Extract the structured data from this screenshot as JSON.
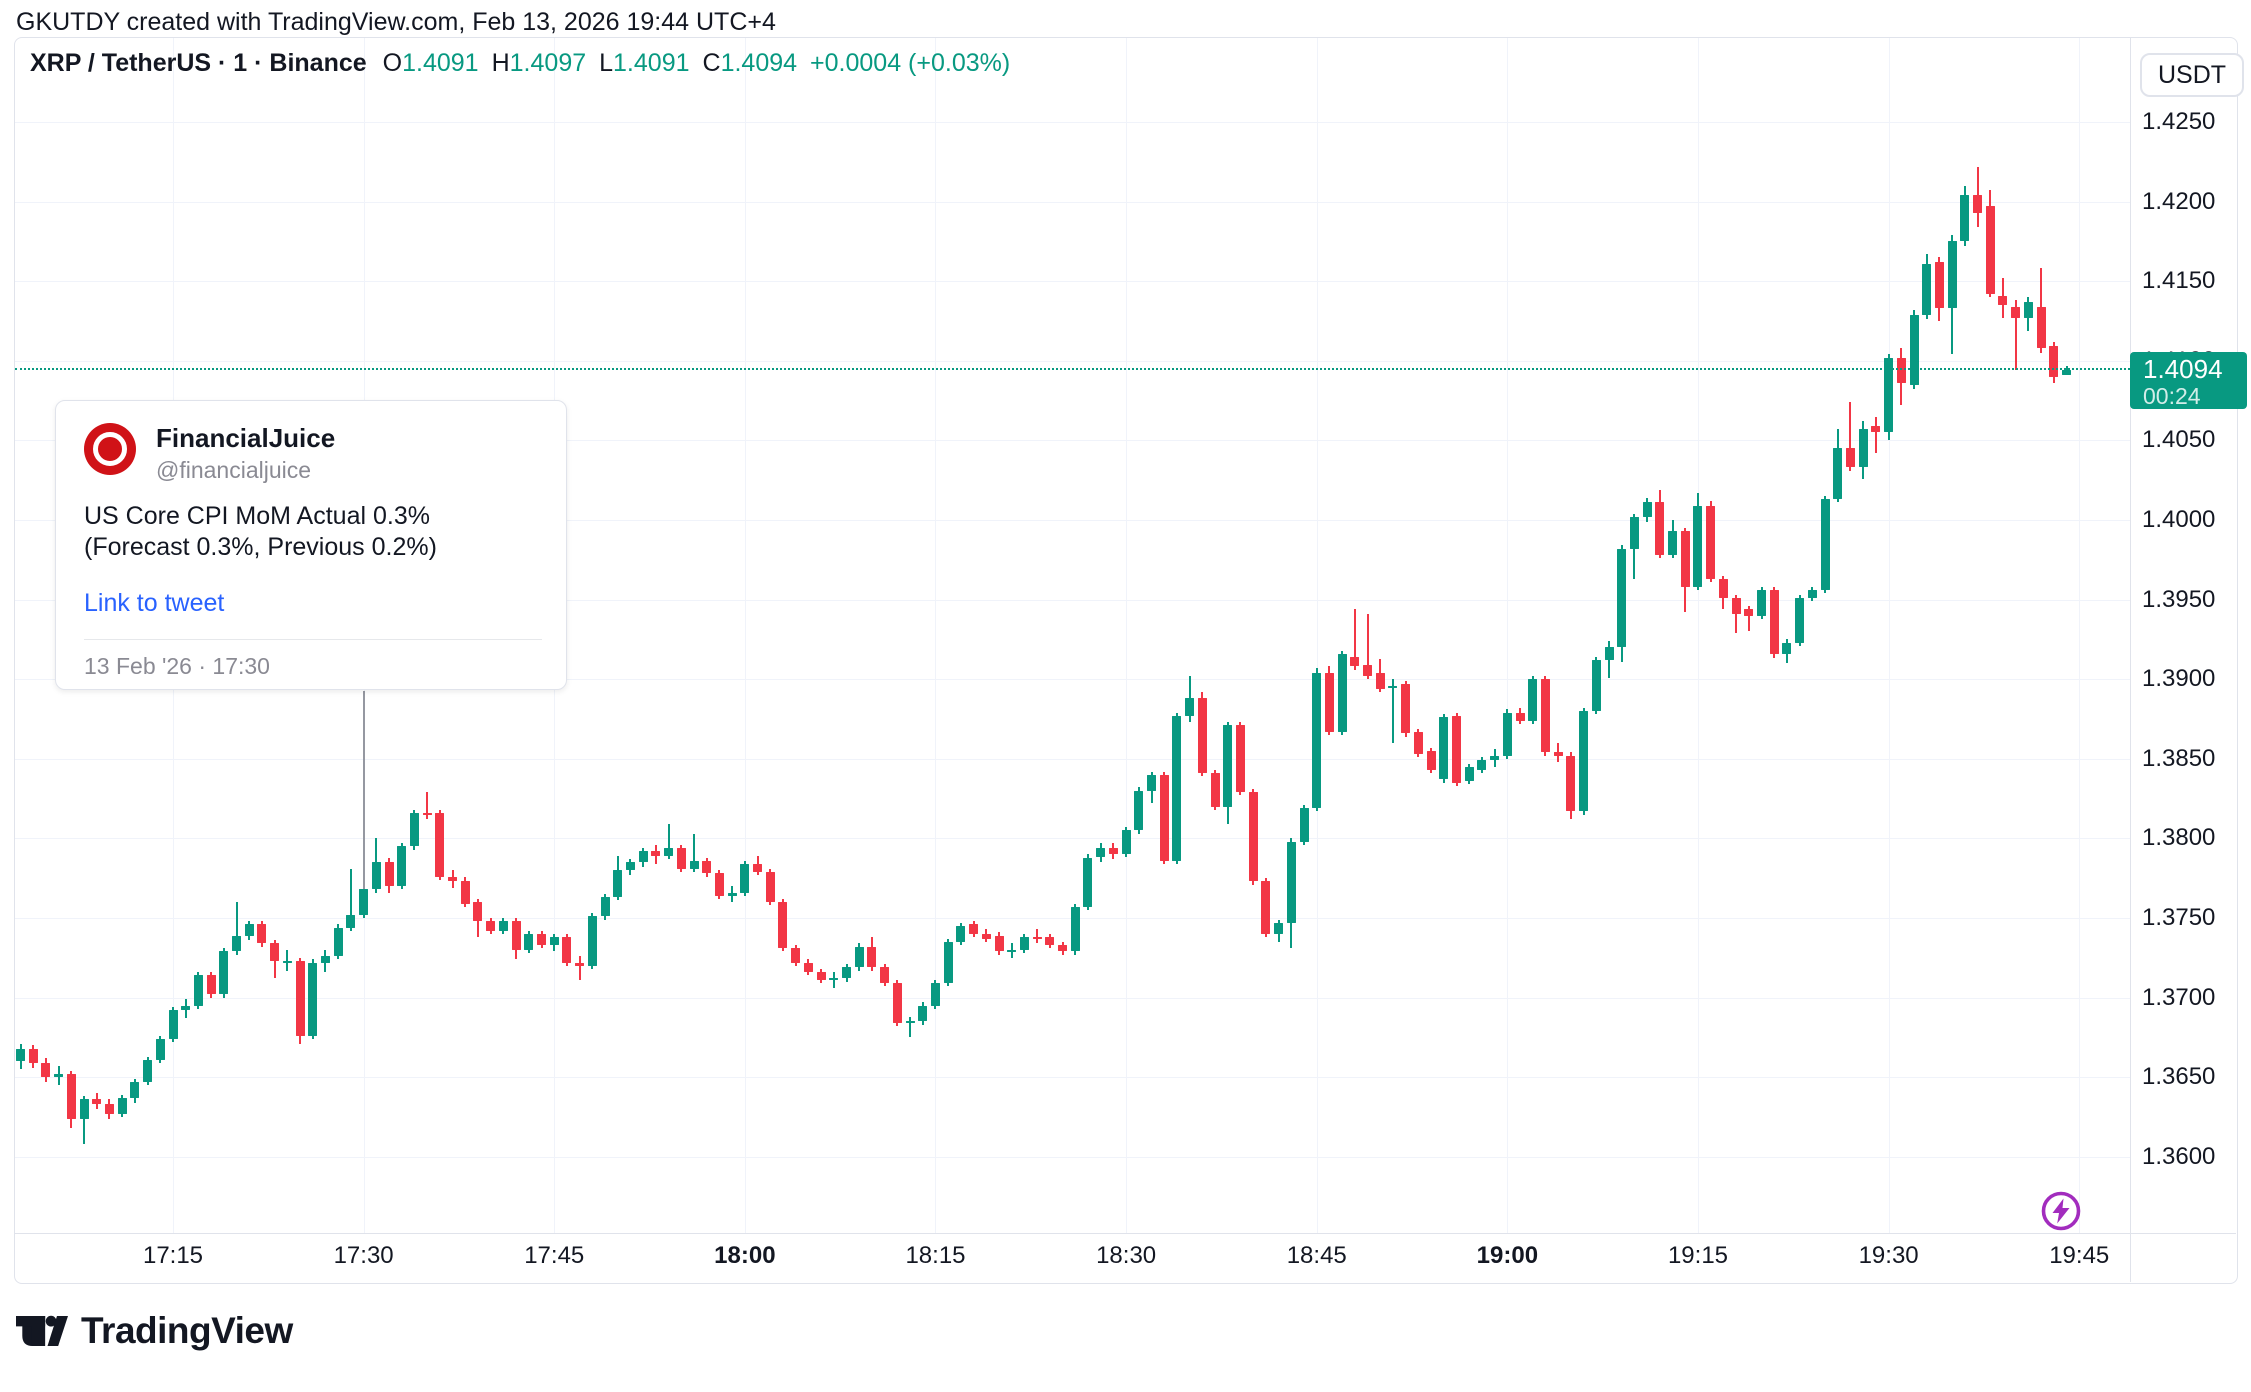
{
  "header": {
    "attribution": "GKUTDY created with TradingView.com, Feb 13, 2026 19:44 UTC+4"
  },
  "legend": {
    "symbol": "XRP / TetherUS · 1 · Binance",
    "items": [
      {
        "k": "O",
        "v": "1.4091"
      },
      {
        "k": "H",
        "v": "1.4097"
      },
      {
        "k": "L",
        "v": "1.4091"
      },
      {
        "k": "C",
        "v": "1.4094"
      }
    ],
    "change": "+0.0004 (+0.03%)"
  },
  "currency_button": "USDT",
  "price_scale": {
    "current_price": "1.4094",
    "countdown": "00:24"
  },
  "news_card": {
    "title": "FinancialJuice",
    "handle": "@financialjuice",
    "body": "US Core CPI MoM Actual 0.3% (Forecast 0.3%, Previous 0.2%)",
    "link": "Link to tweet",
    "date": "13 Feb '26 · 17:30"
  },
  "footer": {
    "brand": "TradingView"
  },
  "colors": {
    "up": "#089981",
    "down": "#F23645",
    "grid": "#F0F3FA",
    "border": "#E0E3EB",
    "text": "#131722",
    "muted": "#8A8A93",
    "link_blue": "#2962FF",
    "logo_red": "#D01217",
    "marker_purple": "#A22CBE"
  },
  "chart_data": {
    "type": "candlestick",
    "title": "XRP / TetherUS · 1 · Binance",
    "interval": "1 minute",
    "ylabel": "price (USDT)",
    "ylim": [
      1.3555,
      1.4303
    ],
    "grid": true,
    "price_ticks": [
      "1.4250",
      "1.4200",
      "1.4150",
      "1.4100",
      "1.4050",
      "1.4000",
      "1.3950",
      "1.3900",
      "1.3850",
      "1.3800",
      "1.3750",
      "1.3700",
      "1.3650",
      "1.3600"
    ],
    "time_ticks": [
      {
        "label": "17:15",
        "bold": false
      },
      {
        "label": "17:30",
        "bold": false
      },
      {
        "label": "17:45",
        "bold": false
      },
      {
        "label": "18:00",
        "bold": true
      },
      {
        "label": "18:15",
        "bold": false
      },
      {
        "label": "18:30",
        "bold": false
      },
      {
        "label": "18:45",
        "bold": false
      },
      {
        "label": "19:00",
        "bold": true
      },
      {
        "label": "19:15",
        "bold": false
      },
      {
        "label": "19:30",
        "bold": false
      },
      {
        "label": "19:45",
        "bold": false
      }
    ],
    "current_price": 1.4094,
    "news_event_time": "17:30",
    "alert_marker_time": "19:44",
    "candles": [
      [
        "17:03",
        1.366,
        1.3671,
        1.3655,
        1.3668
      ],
      [
        "17:04",
        1.3668,
        1.367,
        1.3656,
        1.3659
      ],
      [
        "17:05",
        1.3659,
        1.3662,
        1.3647,
        1.365
      ],
      [
        "17:06",
        1.365,
        1.3657,
        1.3645,
        1.3652
      ],
      [
        "17:07",
        1.3652,
        1.3654,
        1.3618,
        1.3624
      ],
      [
        "17:08",
        1.3624,
        1.3638,
        1.3608,
        1.3636
      ],
      [
        "17:09",
        1.3636,
        1.364,
        1.363,
        1.3633
      ],
      [
        "17:10",
        1.3633,
        1.3636,
        1.3624,
        1.3627
      ],
      [
        "17:11",
        1.3627,
        1.3639,
        1.3625,
        1.3637
      ],
      [
        "17:12",
        1.3637,
        1.3649,
        1.3634,
        1.3647
      ],
      [
        "17:13",
        1.3647,
        1.3663,
        1.3645,
        1.3661
      ],
      [
        "17:14",
        1.3661,
        1.3676,
        1.3659,
        1.3674
      ],
      [
        "17:15",
        1.3674,
        1.3694,
        1.3672,
        1.3692
      ],
      [
        "17:16",
        1.3692,
        1.3699,
        1.3687,
        1.3695
      ],
      [
        "17:17",
        1.3695,
        1.3716,
        1.3693,
        1.3714
      ],
      [
        "17:18",
        1.3714,
        1.3716,
        1.37,
        1.3702
      ],
      [
        "17:19",
        1.3702,
        1.3731,
        1.37,
        1.3729
      ],
      [
        "17:20",
        1.3729,
        1.376,
        1.3727,
        1.3739
      ],
      [
        "17:21",
        1.3739,
        1.3748,
        1.3736,
        1.3746
      ],
      [
        "17:22",
        1.3746,
        1.3748,
        1.3732,
        1.3734
      ],
      [
        "17:23",
        1.3734,
        1.3736,
        1.3712,
        1.3723
      ],
      [
        "17:24",
        1.3723,
        1.373,
        1.3717,
        1.3723
      ],
      [
        "17:25",
        1.3723,
        1.3725,
        1.3671,
        1.3676
      ],
      [
        "17:26",
        1.3676,
        1.3724,
        1.3674,
        1.3722
      ],
      [
        "17:27",
        1.3722,
        1.373,
        1.3716,
        1.3726
      ],
      [
        "17:28",
        1.3726,
        1.3746,
        1.3724,
        1.3744
      ],
      [
        "17:29",
        1.3744,
        1.3781,
        1.3742,
        1.3752
      ],
      [
        "17:30",
        1.3752,
        1.389,
        1.375,
        1.3768
      ],
      [
        "17:31",
        1.3768,
        1.38,
        1.3766,
        1.3785
      ],
      [
        "17:32",
        1.3785,
        1.3788,
        1.3766,
        1.377
      ],
      [
        "17:33",
        1.377,
        1.3797,
        1.3768,
        1.3795
      ],
      [
        "17:34",
        1.3795,
        1.3818,
        1.3793,
        1.3816
      ],
      [
        "17:35",
        1.3816,
        1.3829,
        1.3812,
        1.3815
      ],
      [
        "17:36",
        1.3816,
        1.3818,
        1.3774,
        1.3776
      ],
      [
        "17:37",
        1.3776,
        1.378,
        1.3769,
        1.3773
      ],
      [
        "17:38",
        1.3773,
        1.3776,
        1.3757,
        1.3759
      ],
      [
        "17:39",
        1.376,
        1.3762,
        1.3738,
        1.3748
      ],
      [
        "17:40",
        1.3748,
        1.375,
        1.374,
        1.3742
      ],
      [
        "17:41",
        1.3742,
        1.375,
        1.374,
        1.3748
      ],
      [
        "17:42",
        1.3748,
        1.375,
        1.3724,
        1.373
      ],
      [
        "17:43",
        1.373,
        1.3742,
        1.3728,
        1.374
      ],
      [
        "17:44",
        1.374,
        1.3742,
        1.3731,
        1.3733
      ],
      [
        "17:45",
        1.3733,
        1.374,
        1.3729,
        1.3738
      ],
      [
        "17:46",
        1.3738,
        1.374,
        1.372,
        1.3722
      ],
      [
        "17:47",
        1.3722,
        1.3726,
        1.3711,
        1.372
      ],
      [
        "17:48",
        1.372,
        1.3753,
        1.3718,
        1.3751
      ],
      [
        "17:49",
        1.3751,
        1.3765,
        1.3749,
        1.3763
      ],
      [
        "17:50",
        1.3763,
        1.3789,
        1.3761,
        1.378
      ],
      [
        "17:51",
        1.378,
        1.3787,
        1.3777,
        1.3785
      ],
      [
        "17:52",
        1.3785,
        1.3794,
        1.3782,
        1.3792
      ],
      [
        "17:53",
        1.3792,
        1.3796,
        1.3784,
        1.3789
      ],
      [
        "17:54",
        1.3789,
        1.3809,
        1.3787,
        1.3794
      ],
      [
        "17:55",
        1.3794,
        1.3796,
        1.3779,
        1.3781
      ],
      [
        "17:56",
        1.3781,
        1.3803,
        1.3779,
        1.3786
      ],
      [
        "17:57",
        1.3786,
        1.3788,
        1.3776,
        1.3778
      ],
      [
        "17:58",
        1.3778,
        1.378,
        1.3762,
        1.3764
      ],
      [
        "17:59",
        1.3764,
        1.377,
        1.376,
        1.3766
      ],
      [
        "18:00",
        1.3766,
        1.3786,
        1.3764,
        1.3784
      ],
      [
        "18:01",
        1.3784,
        1.3789,
        1.3777,
        1.3779
      ],
      [
        "18:02",
        1.3779,
        1.3781,
        1.3758,
        1.376
      ],
      [
        "18:03",
        1.376,
        1.3762,
        1.3729,
        1.3731
      ],
      [
        "18:04",
        1.3731,
        1.3733,
        1.372,
        1.3722
      ],
      [
        "18:05",
        1.3722,
        1.3724,
        1.3714,
        1.3716
      ],
      [
        "18:06",
        1.3716,
        1.3718,
        1.3709,
        1.3711
      ],
      [
        "18:07",
        1.3711,
        1.3716,
        1.3706,
        1.3712
      ],
      [
        "18:08",
        1.3712,
        1.3721,
        1.371,
        1.3719
      ],
      [
        "18:09",
        1.3719,
        1.3734,
        1.3717,
        1.3732
      ],
      [
        "18:10",
        1.3732,
        1.3738,
        1.3717,
        1.3719
      ],
      [
        "18:11",
        1.3719,
        1.3721,
        1.3707,
        1.3709
      ],
      [
        "18:12",
        1.3709,
        1.3711,
        1.3682,
        1.3684
      ],
      [
        "18:13",
        1.3684,
        1.3688,
        1.3675,
        1.3685
      ],
      [
        "18:14",
        1.3685,
        1.3697,
        1.3683,
        1.3695
      ],
      [
        "18:15",
        1.3695,
        1.3711,
        1.3693,
        1.3709
      ],
      [
        "18:16",
        1.3709,
        1.3737,
        1.3707,
        1.3735
      ],
      [
        "18:17",
        1.3735,
        1.3747,
        1.3733,
        1.3745
      ],
      [
        "18:18",
        1.3746,
        1.3748,
        1.3738,
        1.374
      ],
      [
        "18:19",
        1.374,
        1.3743,
        1.3735,
        1.3737
      ],
      [
        "18:20",
        1.3739,
        1.3741,
        1.3727,
        1.3729
      ],
      [
        "18:21",
        1.3729,
        1.3734,
        1.3725,
        1.373
      ],
      [
        "18:22",
        1.373,
        1.374,
        1.3728,
        1.3738
      ],
      [
        "18:23",
        1.3738,
        1.3743,
        1.3734,
        1.3737
      ],
      [
        "18:24",
        1.3738,
        1.374,
        1.3731,
        1.3733
      ],
      [
        "18:25",
        1.3733,
        1.3735,
        1.3727,
        1.3729
      ],
      [
        "18:26",
        1.3729,
        1.3759,
        1.3727,
        1.3757
      ],
      [
        "18:27",
        1.3757,
        1.379,
        1.3755,
        1.3788
      ],
      [
        "18:28",
        1.3788,
        1.3797,
        1.3785,
        1.3794
      ],
      [
        "18:29",
        1.3794,
        1.3797,
        1.3787,
        1.379
      ],
      [
        "18:30",
        1.379,
        1.3807,
        1.3788,
        1.3805
      ],
      [
        "18:31",
        1.3805,
        1.3832,
        1.3803,
        1.383
      ],
      [
        "18:32",
        1.383,
        1.3842,
        1.3822,
        1.384
      ],
      [
        "18:33",
        1.384,
        1.3842,
        1.3784,
        1.3786
      ],
      [
        "18:34",
        1.3786,
        1.3879,
        1.3784,
        1.3877
      ],
      [
        "18:35",
        1.3877,
        1.3902,
        1.3873,
        1.3888
      ],
      [
        "18:36",
        1.3888,
        1.3892,
        1.3839,
        1.3841
      ],
      [
        "18:37",
        1.3841,
        1.3843,
        1.3818,
        1.382
      ],
      [
        "18:38",
        1.382,
        1.3873,
        1.3809,
        1.3871
      ],
      [
        "18:39",
        1.3871,
        1.3873,
        1.3827,
        1.3829
      ],
      [
        "18:40",
        1.3829,
        1.3831,
        1.3771,
        1.3773
      ],
      [
        "18:41",
        1.3773,
        1.3775,
        1.3738,
        1.374
      ],
      [
        "18:42",
        1.374,
        1.3749,
        1.3735,
        1.3747
      ],
      [
        "18:43",
        1.3747,
        1.38,
        1.3731,
        1.3798
      ],
      [
        "18:44",
        1.3798,
        1.3821,
        1.3796,
        1.3819
      ],
      [
        "18:45",
        1.3819,
        1.3907,
        1.3817,
        1.3904
      ],
      [
        "18:46",
        1.3904,
        1.3908,
        1.3865,
        1.3867
      ],
      [
        "18:47",
        1.3867,
        1.3918,
        1.3865,
        1.3916
      ],
      [
        "18:48",
        1.3914,
        1.3944,
        1.3906,
        1.3908
      ],
      [
        "18:49",
        1.3909,
        1.3941,
        1.39,
        1.3902
      ],
      [
        "18:50",
        1.3904,
        1.3913,
        1.3892,
        1.3894
      ],
      [
        "18:51",
        1.3896,
        1.39,
        1.386,
        1.3896
      ],
      [
        "18:52",
        1.3897,
        1.3899,
        1.3864,
        1.3866
      ],
      [
        "18:53",
        1.3867,
        1.3869,
        1.3851,
        1.3853
      ],
      [
        "18:54",
        1.3855,
        1.3857,
        1.3841,
        1.3843
      ],
      [
        "18:55",
        1.3837,
        1.3878,
        1.3835,
        1.3876
      ],
      [
        "18:56",
        1.3877,
        1.3879,
        1.3833,
        1.3835
      ],
      [
        "18:57",
        1.3836,
        1.3847,
        1.3834,
        1.3845
      ],
      [
        "18:58",
        1.3843,
        1.3851,
        1.3841,
        1.3849
      ],
      [
        "18:59",
        1.3849,
        1.3856,
        1.3845,
        1.3852
      ],
      [
        "19:00",
        1.3852,
        1.3881,
        1.385,
        1.3879
      ],
      [
        "19:01",
        1.3879,
        1.3882,
        1.3872,
        1.3874
      ],
      [
        "19:02",
        1.3874,
        1.3902,
        1.3872,
        1.39
      ],
      [
        "19:03",
        1.39,
        1.3902,
        1.3852,
        1.3854
      ],
      [
        "19:04",
        1.3854,
        1.386,
        1.3848,
        1.3852
      ],
      [
        "19:05",
        1.3852,
        1.3854,
        1.3812,
        1.3817
      ],
      [
        "19:06",
        1.3817,
        1.3882,
        1.3815,
        1.388
      ],
      [
        "19:07",
        1.388,
        1.3914,
        1.3878,
        1.3912
      ],
      [
        "19:08",
        1.3912,
        1.3924,
        1.3901,
        1.392
      ],
      [
        "19:09",
        1.392,
        1.3984,
        1.3911,
        1.3982
      ],
      [
        "19:10",
        1.3982,
        1.4004,
        1.3963,
        1.4002
      ],
      [
        "19:11",
        1.4002,
        1.4014,
        1.3999,
        1.4011
      ],
      [
        "19:12",
        1.4011,
        1.4019,
        1.3976,
        1.3978
      ],
      [
        "19:13",
        1.3978,
        1.4,
        1.3976,
        1.3993
      ],
      [
        "19:14",
        1.3993,
        1.3995,
        1.3942,
        1.3958
      ],
      [
        "19:15",
        1.3958,
        1.4017,
        1.3956,
        1.4009
      ],
      [
        "19:16",
        1.4009,
        1.4012,
        1.3961,
        1.3963
      ],
      [
        "19:17",
        1.3963,
        1.3965,
        1.3944,
        1.3951
      ],
      [
        "19:18",
        1.3951,
        1.3953,
        1.3929,
        1.3941
      ],
      [
        "19:19",
        1.3944,
        1.3946,
        1.393,
        1.394
      ],
      [
        "19:20",
        1.394,
        1.3958,
        1.3938,
        1.3956
      ],
      [
        "19:21",
        1.3956,
        1.3958,
        1.3913,
        1.3916
      ],
      [
        "19:22",
        1.3916,
        1.3925,
        1.391,
        1.3923
      ],
      [
        "19:23",
        1.3923,
        1.3953,
        1.3921,
        1.3951
      ],
      [
        "19:24",
        1.3951,
        1.3958,
        1.3949,
        1.3956
      ],
      [
        "19:25",
        1.3956,
        1.4015,
        1.3954,
        1.4013
      ],
      [
        "19:26",
        1.4013,
        1.4057,
        1.4011,
        1.4045
      ],
      [
        "19:27",
        1.4045,
        1.4074,
        1.4031,
        1.4033
      ],
      [
        "19:28",
        1.4033,
        1.4062,
        1.4026,
        1.4057
      ],
      [
        "19:29",
        1.4059,
        1.4065,
        1.4042,
        1.4055
      ],
      [
        "19:30",
        1.4055,
        1.4104,
        1.405,
        1.4102
      ],
      [
        "19:31",
        1.4102,
        1.4108,
        1.4072,
        1.4086
      ],
      [
        "19:32",
        1.4085,
        1.4132,
        1.4082,
        1.4129
      ],
      [
        "19:33",
        1.4129,
        1.4167,
        1.4126,
        1.4161
      ],
      [
        "19:34",
        1.4162,
        1.4165,
        1.4125,
        1.4133
      ],
      [
        "19:35",
        1.4133,
        1.4179,
        1.4104,
        1.4175
      ],
      [
        "19:36",
        1.4175,
        1.421,
        1.4172,
        1.4204
      ],
      [
        "19:37",
        1.4204,
        1.4222,
        1.4184,
        1.4193
      ],
      [
        "19:38",
        1.4197,
        1.4207,
        1.414,
        1.4142
      ],
      [
        "19:39",
        1.4141,
        1.4152,
        1.4127,
        1.4135
      ],
      [
        "19:40",
        1.4134,
        1.4138,
        1.4094,
        1.4127
      ],
      [
        "19:41",
        1.4127,
        1.414,
        1.4119,
        1.4137
      ],
      [
        "19:42",
        1.4134,
        1.4158,
        1.4105,
        1.4108
      ],
      [
        "19:43",
        1.4109,
        1.4112,
        1.4086,
        1.409
      ],
      [
        "19:44",
        1.4091,
        1.4097,
        1.4091,
        1.4094
      ]
    ]
  }
}
